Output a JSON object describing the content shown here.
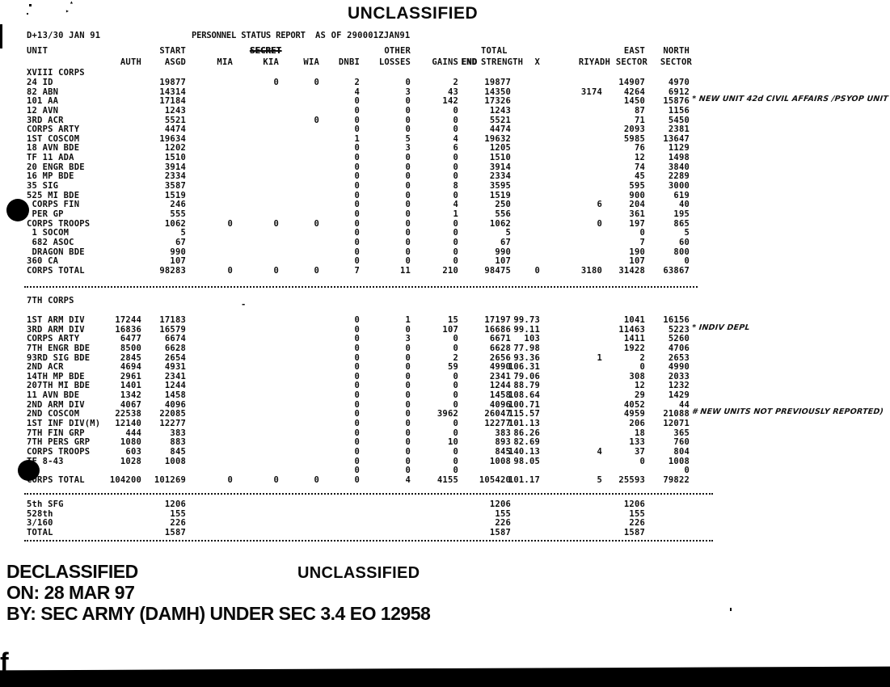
{
  "header": {
    "classification_top": "UNCLASSIFIED",
    "date_line": "D+13/30 JAN 91",
    "report_title": "PERSONNEL STATUS REPORT",
    "as_of": "AS OF 290001ZJAN91"
  },
  "columns": {
    "unit": "UNIT",
    "auth": "AUTH",
    "start1": "START",
    "start2": "ASGD",
    "mia": "MIA",
    "secret": "SECRET",
    "kia": "KIA",
    "wia": "WIA",
    "dnbi": "DNBI",
    "other1": "OTHER",
    "other2": "LOSSES",
    "gains": "GAINS",
    "end": "END",
    "total1": "TOTAL",
    "total2": "STRENGTH",
    "pct": "X",
    "riyadh": "RIYADH",
    "east1": "EAST",
    "east2": "SECTOR",
    "north1": "NORTH",
    "north2": "SECTOR"
  },
  "table": {
    "sections": [
      {
        "title": "XVIII CORPS",
        "rows": [
          {
            "unit": "24 ID",
            "start": "19877",
            "kia": "0",
            "wia": "0",
            "dnbi": "2",
            "loss": "0",
            "gains": "2",
            "total": "19877",
            "east": "14907",
            "north": "4970"
          },
          {
            "unit": "82 ABN",
            "start": "14314",
            "dnbi": "4",
            "loss": "3",
            "gains": "43",
            "total": "14350",
            "riy": "3174",
            "east": "4264",
            "north": "6912"
          },
          {
            "unit": "101 AA",
            "start": "17184",
            "dnbi": "0",
            "loss": "0",
            "gains": "142",
            "total": "17326",
            "east": "1450",
            "north": "15876",
            "note": "* NEW UNIT 42d CIVIL AFFAIRS /PSYOP UNIT"
          },
          {
            "unit": "12 AVN",
            "start": "1243",
            "dnbi": "0",
            "loss": "0",
            "gains": "0",
            "total": "1243",
            "east": "87",
            "north": "1156"
          },
          {
            "unit": "3RD ACR",
            "start": "5521",
            "wia": "0",
            "dnbi": "0",
            "loss": "0",
            "gains": "0",
            "total": "5521",
            "east": "71",
            "north": "5450"
          },
          {
            "unit": "CORPS ARTY",
            "start": "4474",
            "dnbi": "0",
            "loss": "0",
            "gains": "0",
            "total": "4474",
            "east": "2093",
            "north": "2381"
          },
          {
            "unit": "1ST COSCOM",
            "start": "19634",
            "dnbi": "1",
            "loss": "5",
            "gains": "4",
            "total": "19632",
            "east": "5985",
            "north": "13647"
          },
          {
            "unit": "18 AVN BDE",
            "start": "1202",
            "dnbi": "0",
            "loss": "3",
            "gains": "6",
            "total": "1205",
            "east": "76",
            "north": "1129"
          },
          {
            "unit": "TF 11 ADA",
            "start": "1510",
            "dnbi": "0",
            "loss": "0",
            "gains": "0",
            "total": "1510",
            "east": "12",
            "north": "1498"
          },
          {
            "unit": "20 ENGR BDE",
            "start": "3914",
            "dnbi": "0",
            "loss": "0",
            "gains": "0",
            "total": "3914",
            "east": "74",
            "north": "3840"
          },
          {
            "unit": "16 MP BDE",
            "start": "2334",
            "dnbi": "0",
            "loss": "0",
            "gains": "0",
            "total": "2334",
            "east": "45",
            "north": "2289"
          },
          {
            "unit": "35 SIG",
            "start": "3587",
            "dnbi": "0",
            "loss": "0",
            "gains": "8",
            "total": "3595",
            "east": "595",
            "north": "3000"
          },
          {
            "unit": "525 MI BDE",
            "start": "1519",
            "dnbi": "0",
            "loss": "0",
            "gains": "0",
            "total": "1519",
            "east": "900",
            "north": "619"
          },
          {
            "unit": " CORPS FIN",
            "start": "246",
            "dnbi": "0",
            "loss": "0",
            "gains": "4",
            "total": "250",
            "riy": "6",
            "east": "204",
            "north": "40"
          },
          {
            "unit": " PER GP",
            "start": "555",
            "dnbi": "0",
            "loss": "0",
            "gains": "1",
            "total": "556",
            "east": "361",
            "north": "195"
          },
          {
            "unit": "CORPS TROOPS",
            "start": "1062",
            "mia": "0",
            "kia": "0",
            "wia": "0",
            "dnbi": "0",
            "loss": "0",
            "gains": "0",
            "total": "1062",
            "riy": "0",
            "east": "197",
            "north": "865"
          },
          {
            "unit": " 1 SOCOM",
            "start": "5",
            "dnbi": "0",
            "loss": "0",
            "gains": "0",
            "total": "5",
            "east": "0",
            "north": "5"
          },
          {
            "unit": " 682 ASOC",
            "start": "67",
            "dnbi": "0",
            "loss": "0",
            "gains": "0",
            "total": "67",
            "east": "7",
            "north": "60"
          },
          {
            "unit": " DRAGON BDE",
            "start": "990",
            "dnbi": "0",
            "loss": "0",
            "gains": "0",
            "total": "990",
            "east": "190",
            "north": "800"
          },
          {
            "unit": "360 CA",
            "start": "107",
            "dnbi": "0",
            "loss": "0",
            "gains": "0",
            "total": "107",
            "east": "107",
            "north": "0"
          },
          {
            "unit": "CORPS TOTAL",
            "start": "98283",
            "mia": "0",
            "kia": "0",
            "wia": "0",
            "dnbi": "7",
            "loss": "11",
            "gains": "210",
            "total": "98475",
            "pct": "0",
            "riy": "3180",
            "east": "31428",
            "north": "63867"
          }
        ]
      },
      {
        "title": "7TH CORPS",
        "rows": [
          {
            "unit": "1ST ARM DIV",
            "auth": "17244",
            "start": "17183",
            "dnbi": "0",
            "loss": "1",
            "gains": "15",
            "total": "17197",
            "pct": "99.73",
            "east": "1041",
            "north": "16156"
          },
          {
            "unit": "3RD ARM DIV",
            "auth": "16836",
            "start": "16579",
            "dnbi": "0",
            "loss": "0",
            "gains": "107",
            "total": "16686",
            "pct": "99.11",
            "east": "11463",
            "north": "5223",
            "note": "* INDIV DEPL"
          },
          {
            "unit": "CORPS ARTY",
            "auth": "6477",
            "start": "6674",
            "dnbi": "0",
            "loss": "3",
            "gains": "0",
            "total": "6671",
            "pct": "103",
            "east": "1411",
            "north": "5260"
          },
          {
            "unit": "7TH ENGR BDE",
            "auth": "8500",
            "start": "6628",
            "dnbi": "0",
            "loss": "0",
            "gains": "0",
            "total": "6628",
            "pct": "77.98",
            "east": "1922",
            "north": "4706"
          },
          {
            "unit": "93RD SIG BDE",
            "auth": "2845",
            "start": "2654",
            "dnbi": "0",
            "loss": "0",
            "gains": "2",
            "total": "2656",
            "pct": "93.36",
            "riy": "1",
            "east": "2",
            "north": "2653"
          },
          {
            "unit": "2ND ACR",
            "auth": "4694",
            "start": "4931",
            "dnbi": "0",
            "loss": "0",
            "gains": "59",
            "total": "4990",
            "pct": "106.31",
            "east": "0",
            "north": "4990"
          },
          {
            "unit": "14TH MP BDE",
            "auth": "2961",
            "start": "2341",
            "dnbi": "0",
            "loss": "0",
            "gains": "0",
            "total": "2341",
            "pct": "79.06",
            "east": "308",
            "north": "2033"
          },
          {
            "unit": "207TH MI BDE",
            "auth": "1401",
            "start": "1244",
            "dnbi": "0",
            "loss": "0",
            "gains": "0",
            "total": "1244",
            "pct": "88.79",
            "east": "12",
            "north": "1232"
          },
          {
            "unit": "11 AVN BDE",
            "auth": "1342",
            "start": "1458",
            "dnbi": "0",
            "loss": "0",
            "gains": "0",
            "total": "1458",
            "pct": "108.64",
            "east": "29",
            "north": "1429"
          },
          {
            "unit": "2ND ARM DIV",
            "auth": "4067",
            "start": "4096",
            "dnbi": "0",
            "loss": "0",
            "gains": "0",
            "total": "4096",
            "pct": "100.71",
            "east": "4052",
            "north": "44"
          },
          {
            "unit": "2ND COSCOM",
            "auth": "22538",
            "start": "22085",
            "dnbi": "0",
            "loss": "0",
            "gains": "3962",
            "total": "26047",
            "pct": "115.57",
            "east": "4959",
            "north": "21088",
            "note": "# NEW UNITS NOT PREVIOUSLY REPORTED)"
          },
          {
            "unit": "1ST INF DIV(M)",
            "auth": "12140",
            "start": "12277",
            "dnbi": "0",
            "loss": "0",
            "gains": "0",
            "total": "12277",
            "pct": "101.13",
            "east": "206",
            "north": "12071"
          },
          {
            "unit": "7TH FIN GRP",
            "auth": "444",
            "start": "383",
            "dnbi": "0",
            "loss": "0",
            "gains": "0",
            "total": "383",
            "pct": "86.26",
            "east": "18",
            "north": "365"
          },
          {
            "unit": "7TH PERS GRP",
            "auth": "1080",
            "start": "883",
            "dnbi": "0",
            "loss": "0",
            "gains": "10",
            "total": "893",
            "pct": "82.69",
            "east": "133",
            "north": "760"
          },
          {
            "unit": "CORPS TROOPS",
            "auth": "603",
            "start": "845",
            "dnbi": "0",
            "loss": "0",
            "gains": "0",
            "total": "845",
            "pct": "140.13",
            "riy": "4",
            "east": "37",
            "north": "804"
          },
          {
            "unit": "TF 8-43",
            "auth": "1028",
            "start": "1008",
            "dnbi": "0",
            "loss": "0",
            "gains": "0",
            "total": "1008",
            "pct": "98.05",
            "east": "0",
            "north": "1008"
          },
          {
            "unit": "",
            "dnbi": "0",
            "loss": "0",
            "gains": "0",
            "north": "0"
          },
          {
            "unit": "CORPS TOTAL",
            "auth": "104200",
            "start": "101269",
            "mia": "0",
            "kia": "0",
            "wia": "0",
            "dnbi": "0",
            "loss": "4",
            "gains": "4155",
            "total": "105420",
            "pct": "101.17",
            "riy": "5",
            "east": "25593",
            "north": "79822"
          }
        ]
      },
      {
        "title": "",
        "rows": [
          {
            "unit": "5th SFG",
            "start": "1206",
            "total": "1206",
            "east": "1206"
          },
          {
            "unit": "528th",
            "start": "155",
            "total": "155",
            "east": "155"
          },
          {
            "unit": "3/160",
            "start": "226",
            "total": "226",
            "east": "226"
          },
          {
            "unit": "TOTAL",
            "start": "1587",
            "total": "1587",
            "east": "1587"
          }
        ]
      }
    ]
  },
  "footer": {
    "declassified": "DECLASSIFIED",
    "on_line": "ON: 28 MAR 97",
    "by_line": "BY: SEC ARMY (DAMH) UNDER SEC 3.4 EO 12958",
    "classification_bottom": "UNCLASSIFIED"
  },
  "marks": {
    "stray_dash": "-",
    "corner_letter": "f"
  }
}
